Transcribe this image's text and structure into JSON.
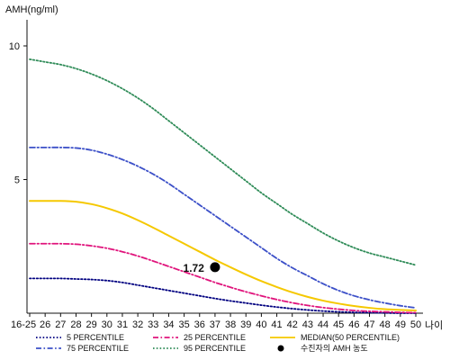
{
  "chart_data": {
    "type": "line",
    "ylabel": "AMH(ng/ml)",
    "xlabel": "나이",
    "categories": [
      "16-25",
      "26",
      "27",
      "28",
      "29",
      "30",
      "31",
      "32",
      "33",
      "34",
      "35",
      "36",
      "37",
      "38",
      "39",
      "40",
      "41",
      "42",
      "43",
      "44",
      "45",
      "46",
      "47",
      "48",
      "49",
      "50"
    ],
    "ylim": [
      0,
      11
    ],
    "yticks": [
      5,
      10
    ],
    "series": [
      {
        "name": "5 PERCENTILE",
        "color": "#000080",
        "dash": "dotted",
        "values": [
          1.3,
          1.3,
          1.3,
          1.28,
          1.26,
          1.22,
          1.15,
          1.05,
          0.95,
          0.85,
          0.75,
          0.65,
          0.55,
          0.46,
          0.38,
          0.3,
          0.23,
          0.17,
          0.12,
          0.08,
          0.05,
          0.03,
          0.02,
          0.01,
          0.0,
          0.0
        ]
      },
      {
        "name": "75 PERCENTILE",
        "color": "#3c50c8",
        "dash": "dashdot",
        "values": [
          6.2,
          6.2,
          6.2,
          6.18,
          6.1,
          5.95,
          5.75,
          5.5,
          5.2,
          4.85,
          4.45,
          4.05,
          3.65,
          3.25,
          2.85,
          2.45,
          2.05,
          1.7,
          1.4,
          1.1,
          0.85,
          0.65,
          0.5,
          0.38,
          0.28,
          0.2
        ]
      },
      {
        "name": "25 PERCENTILE",
        "color": "#e0147c",
        "dash": "dashdot",
        "values": [
          2.6,
          2.6,
          2.6,
          2.58,
          2.52,
          2.43,
          2.3,
          2.14,
          1.95,
          1.75,
          1.55,
          1.35,
          1.15,
          0.97,
          0.8,
          0.65,
          0.51,
          0.39,
          0.29,
          0.21,
          0.15,
          0.1,
          0.07,
          0.05,
          0.03,
          0.02
        ]
      },
      {
        "name": "95 PERCENTILE",
        "color": "#2e8b57",
        "dash": "dotted",
        "values": [
          9.5,
          9.4,
          9.3,
          9.15,
          8.95,
          8.7,
          8.4,
          8.05,
          7.65,
          7.2,
          6.75,
          6.3,
          5.85,
          5.4,
          4.95,
          4.5,
          4.1,
          3.7,
          3.35,
          3.0,
          2.7,
          2.45,
          2.25,
          2.1,
          1.95,
          1.8
        ]
      },
      {
        "name": "MEDIAN(50 PERCENTILE)",
        "color": "#f5c800",
        "dash": "solid",
        "values": [
          4.2,
          4.2,
          4.2,
          4.17,
          4.08,
          3.93,
          3.73,
          3.48,
          3.2,
          2.9,
          2.6,
          2.3,
          2.0,
          1.72,
          1.45,
          1.2,
          0.98,
          0.78,
          0.61,
          0.47,
          0.36,
          0.27,
          0.2,
          0.15,
          0.12,
          0.1
        ]
      }
    ],
    "highlight_point": {
      "name": "수진자의 AMH 농도",
      "x": "37",
      "y": 1.72,
      "label": "1.72",
      "color": "#000000"
    },
    "legend": {
      "placement": "bottom",
      "order": [
        "5 PERCENTILE",
        "25 PERCENTILE",
        "MEDIAN(50 PERCENTILE)",
        "75 PERCENTILE",
        "95 PERCENTILE",
        "수진자의 AMH 농도"
      ]
    },
    "grid": false
  }
}
